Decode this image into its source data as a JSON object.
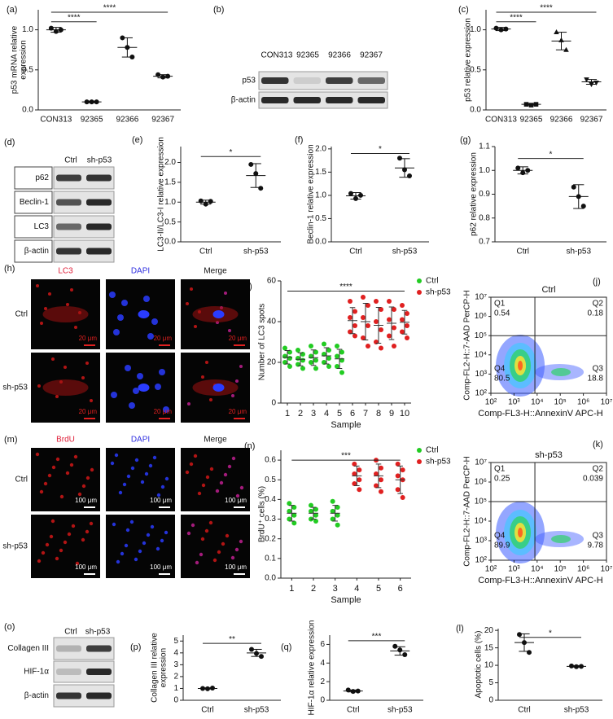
{
  "chart_data": [
    {
      "type": "dot",
      "panel": "(a)",
      "ylabel": [
        "p53 mRNA relative",
        "expression"
      ],
      "categories": [
        "CON313",
        "92365",
        "92366",
        "92367"
      ],
      "points": [
        [
          1.02,
          0.98,
          1.0
        ],
        [
          0.1,
          0.1,
          0.1
        ],
        [
          0.9,
          0.78,
          0.66
        ],
        [
          0.44,
          0.41,
          0.42
        ]
      ],
      "means": [
        1.0,
        0.1,
        0.78,
        0.42
      ],
      "sds": [
        0.03,
        0.01,
        0.12,
        0.02
      ],
      "ylim": [
        0,
        1.25
      ],
      "yticks": [
        {
          "value": 0,
          "label": "0.0"
        },
        0.5,
        {
          "value": 1,
          "label": "1.0"
        }
      ],
      "color": "#111111",
      "significance": [
        {
          "text": "****",
          "between": [
            "CON313",
            "92365"
          ],
          "y": 1.1
        },
        {
          "text": "****",
          "between": [
            "CON313",
            "92367"
          ],
          "y": 1.22
        }
      ]
    },
    {
      "type": "dot",
      "panel": "(c)",
      "ylabel": [
        "p53 relative expression"
      ],
      "categories": [
        "CON313",
        "92365",
        "92366",
        "92367"
      ],
      "points": [
        [
          1.02,
          1.0,
          1.01
        ],
        [
          0.07,
          0.06,
          0.07
        ],
        [
          0.97,
          0.87,
          0.75
        ],
        [
          0.38,
          0.32,
          0.34
        ]
      ],
      "means": [
        1.01,
        0.07,
        0.86,
        0.35
      ],
      "sds": [
        0.02,
        0.01,
        0.11,
        0.03
      ],
      "markers": [
        "circle",
        "square",
        "triangle",
        "triangle-down"
      ],
      "ylim": [
        0,
        1.25
      ],
      "yticks": [
        {
          "value": 0,
          "label": "0.0"
        },
        0.5,
        {
          "value": 1,
          "label": "1.0"
        }
      ],
      "color": "#111111",
      "significance": [
        {
          "text": "****",
          "between": [
            "CON313",
            "92365"
          ],
          "y": 1.1
        },
        {
          "text": "****",
          "between": [
            "CON313",
            "92367"
          ],
          "y": 1.22
        }
      ]
    },
    {
      "type": "dot",
      "panel": "(e)",
      "ylabel": [
        "LC3-II/LC3-I relative expression"
      ],
      "categories": [
        "Ctrl",
        "sh-p53"
      ],
      "points": [
        [
          1.03,
          0.95,
          1.02
        ],
        [
          1.95,
          1.72,
          1.35
        ]
      ],
      "means": [
        1.0,
        1.67
      ],
      "sds": [
        0.05,
        0.3
      ],
      "ylim": [
        0,
        2.4
      ],
      "yticks": [
        {
          "value": 0,
          "label": "0.0"
        },
        0.5,
        {
          "value": 1,
          "label": "1.0"
        },
        1.5,
        {
          "value": 2,
          "label": "2.0"
        }
      ],
      "color": "#111111",
      "significance": [
        {
          "text": "*",
          "between": [
            "Ctrl",
            "sh-p53"
          ],
          "y": 2.15
        }
      ]
    },
    {
      "type": "dot",
      "panel": "(f)",
      "ylabel": [
        "Beclin-1 relative expression"
      ],
      "categories": [
        "Ctrl",
        "sh-p53"
      ],
      "points": [
        [
          1.04,
          0.93,
          1.0
        ],
        [
          1.8,
          1.55,
          1.42
        ]
      ],
      "means": [
        0.99,
        1.59
      ],
      "sds": [
        0.07,
        0.2
      ],
      "ylim": [
        0,
        2.05
      ],
      "yticks": [
        {
          "value": 0,
          "label": "0.0"
        },
        0.5,
        {
          "value": 1,
          "label": "1.0"
        },
        1.5,
        {
          "value": 2,
          "label": "2.0"
        }
      ],
      "color": "#111111",
      "significance": [
        {
          "text": "*",
          "between": [
            "Ctrl",
            "sh-p53"
          ],
          "y": 1.9
        }
      ]
    },
    {
      "type": "dot",
      "panel": "(g)",
      "ylabel": [
        "p62 relative expression"
      ],
      "categories": [
        "Ctrl",
        "sh-p53"
      ],
      "points": [
        [
          1.01,
          0.99,
          1.0
        ],
        [
          0.93,
          0.89,
          0.85
        ]
      ],
      "means": [
        1.0,
        0.89
      ],
      "sds": [
        0.015,
        0.05
      ],
      "ylim": [
        0.7,
        1.1
      ],
      "yticks": [
        0.7,
        0.8,
        0.9,
        {
          "value": 1,
          "label": "1.0"
        },
        1.1
      ],
      "color": "#111111",
      "significance": [
        {
          "text": "*",
          "between": [
            "Ctrl",
            "sh-p53"
          ],
          "y": 1.05
        }
      ]
    },
    {
      "type": "sample-dot",
      "panel": "(i)",
      "ylabel": [
        "Number of LC3 spots"
      ],
      "xlabel": "Sample",
      "xlim": [
        0.5,
        10.5
      ],
      "xticks": [
        1,
        2,
        3,
        4,
        5,
        6,
        7,
        8,
        9,
        10
      ],
      "ylim": [
        0,
        60
      ],
      "yticks": [
        0,
        20,
        40,
        60
      ],
      "series": [
        {
          "name": "Ctrl",
          "color": "#22cc22",
          "x": [
            1,
            2,
            3,
            4,
            5
          ],
          "points": [
            [
              27,
              25,
              23,
              22,
              20,
              18
            ],
            [
              26,
              24,
              22,
              21,
              19,
              17
            ],
            [
              28,
              25,
              23,
              21,
              20,
              17
            ],
            [
              29,
              26,
              24,
              22,
              20,
              18
            ],
            [
              28,
              25,
              23,
              21,
              18,
              15
            ]
          ],
          "means": [
            22.5,
            21.5,
            22.3,
            23.2,
            21.7
          ],
          "sds": [
            3.3,
            3.2,
            3.8,
            4,
            4.7
          ]
        },
        {
          "name": "sh-p53",
          "color": "#e02020",
          "x": [
            6,
            7,
            8,
            9,
            10
          ],
          "points": [
            [
              50,
              45,
              42,
              38,
              35,
              33
            ],
            [
              52,
              48,
              42,
              38,
              32,
              28
            ],
            [
              50,
              46,
              40,
              36,
              30,
              27
            ],
            [
              50,
              46,
              41,
              37,
              33,
              28
            ],
            [
              48,
              44,
              41,
              38,
              35,
              32
            ]
          ],
          "means": [
            40.5,
            40,
            38.2,
            39.2,
            39.7
          ],
          "sds": [
            6.4,
            9,
            8.8,
            8,
            5.8
          ]
        }
      ],
      "significance": [
        {
          "text": "****",
          "between": [
            1,
            10
          ],
          "y": 55
        }
      ]
    },
    {
      "type": "sample-dot",
      "panel": "(n)",
      "ylabel": [
        "BrdU⁺ cells (%)"
      ],
      "xlabel": "Sample",
      "xlim": [
        0.5,
        6.5
      ],
      "xticks": [
        1,
        2,
        3,
        4,
        5,
        6
      ],
      "ylim": [
        0,
        0.65
      ],
      "yticks": [
        {
          "value": 0,
          "label": "0.0"
        },
        0.1,
        0.2,
        0.3,
        0.4,
        0.5,
        0.6
      ],
      "series": [
        {
          "name": "Ctrl",
          "color": "#22cc22",
          "x": [
            1,
            2,
            3
          ],
          "points": [
            [
              0.38,
              0.36,
              0.34,
              0.32,
              0.3,
              0.28
            ],
            [
              0.37,
              0.35,
              0.34,
              0.32,
              0.3,
              0.29
            ],
            [
              0.39,
              0.36,
              0.34,
              0.32,
              0.3,
              0.27
            ]
          ],
          "means": [
            0.33,
            0.33,
            0.33
          ],
          "sds": [
            0.04,
            0.03,
            0.04
          ]
        },
        {
          "name": "sh-p53",
          "color": "#e02020",
          "x": [
            4,
            5,
            6
          ],
          "points": [
            [
              0.58,
              0.55,
              0.53,
              0.5,
              0.48,
              0.45
            ],
            [
              0.6,
              0.56,
              0.53,
              0.5,
              0.47,
              0.44
            ],
            [
              0.58,
              0.55,
              0.52,
              0.5,
              0.45,
              0.41
            ]
          ],
          "means": [
            0.52,
            0.52,
            0.5
          ],
          "sds": [
            0.05,
            0.06,
            0.07
          ]
        }
      ],
      "significance": [
        {
          "text": "***",
          "between": [
            1,
            6
          ],
          "y": 0.6
        }
      ]
    },
    {
      "type": "dot",
      "panel": "(p)",
      "ylabel": [
        "Collagen III relative",
        "expression"
      ],
      "categories": [
        "Ctrl",
        "sh-p53"
      ],
      "points": [
        [
          1.0,
          0.97,
          1.03
        ],
        [
          4.3,
          3.95,
          3.7
        ]
      ],
      "means": [
        1.0,
        4.0
      ],
      "sds": [
        0.05,
        0.3
      ],
      "ylim": [
        0,
        5.5
      ],
      "yticks": [
        0,
        1,
        2,
        3,
        4,
        5
      ],
      "color": "#111111",
      "significance": [
        {
          "text": "**",
          "between": [
            "Ctrl",
            "sh-p53"
          ],
          "y": 4.8
        }
      ]
    },
    {
      "type": "dot",
      "panel": "(q)",
      "ylabel": [
        "HIF-1α relative expression"
      ],
      "categories": [
        "Ctrl",
        "sh-p53"
      ],
      "points": [
        [
          1.1,
          0.95,
          1.0
        ],
        [
          5.8,
          5.4,
          4.9
        ]
      ],
      "means": [
        1.0,
        5.3
      ],
      "sds": [
        0.1,
        0.45
      ],
      "ylim": [
        0,
        7
      ],
      "yticks": [
        0,
        2,
        4,
        6
      ],
      "color": "#111111",
      "significance": [
        {
          "text": "***",
          "between": [
            "Ctrl",
            "sh-p53"
          ],
          "y": 6.4
        }
      ]
    },
    {
      "type": "dot",
      "panel": "(l)",
      "ylabel": [
        "Apoptotic cells (%)"
      ],
      "categories": [
        "Ctrl",
        "sh-p53"
      ],
      "points": [
        [
          18.8,
          16.5,
          13.7
        ],
        [
          9.8,
          9.6,
          9.7
        ]
      ],
      "means": [
        16.5,
        9.7
      ],
      "sds": [
        2.5,
        0.2
      ],
      "ylim": [
        0,
        20.5
      ],
      "yticks": [
        0,
        5,
        10,
        15,
        20
      ],
      "color": "#111111",
      "significance": [
        {
          "text": "*",
          "between": [
            "Ctrl",
            "sh-p53"
          ],
          "y": 18
        }
      ]
    },
    {
      "type": "flow",
      "panel": "(j)",
      "title": "Ctrl",
      "xlabel": "Comp-FL3-H::AnnexinV APC-H",
      "ylabel": [
        "Comp-FL2-H::7-AAD PerCP-H"
      ],
      "log": true,
      "xlim": [
        100,
        10000000
      ],
      "ylim": [
        100,
        10000000
      ],
      "xticks": [
        {
          "value": 100,
          "label": "10²"
        },
        {
          "value": 1000,
          "label": "10³"
        },
        {
          "value": 10000,
          "label": "10⁴"
        },
        {
          "value": 100000,
          "label": "10⁵"
        },
        {
          "value": 1000000,
          "label": "10⁶"
        },
        {
          "value": 10000000,
          "label": "10⁷"
        }
      ],
      "yticks": [
        {
          "value": 100,
          "label": "10²"
        },
        {
          "value": 1000,
          "label": "10³"
        },
        {
          "value": 10000,
          "label": "10⁴"
        },
        {
          "value": 100000,
          "label": "10⁵"
        },
        {
          "value": 1000000,
          "label": "10⁶"
        },
        {
          "value": 10000000,
          "label": "10⁷"
        }
      ],
      "gate": {
        "x": 8000,
        "y": 100000
      },
      "quadrants": [
        {
          "name": "Q1",
          "value": 0.54
        },
        {
          "name": "Q2",
          "value": 0.18
        },
        {
          "name": "Q3",
          "value": 18.8
        },
        {
          "name": "Q4",
          "value": 80.5
        }
      ]
    },
    {
      "type": "flow",
      "panel": "(k)",
      "title": "sh-p53",
      "xlabel": "Comp-FL3-H::AnnexinV APC-H",
      "ylabel": [
        "Comp-FL2-H::7-AAD PerCP-H"
      ],
      "log": true,
      "xlim": [
        100,
        10000000
      ],
      "ylim": [
        100,
        10000000
      ],
      "xticks": [
        {
          "value": 100,
          "label": "10²"
        },
        {
          "value": 1000,
          "label": "10³"
        },
        {
          "value": 10000,
          "label": "10⁴"
        },
        {
          "value": 100000,
          "label": "10⁵"
        },
        {
          "value": 1000000,
          "label": "10⁶"
        },
        {
          "value": 10000000,
          "label": "10⁷"
        }
      ],
      "yticks": [
        {
          "value": 100,
          "label": "10²"
        },
        {
          "value": 1000,
          "label": "10³"
        },
        {
          "value": 10000,
          "label": "10⁴"
        },
        {
          "value": 100000,
          "label": "10⁵"
        },
        {
          "value": 1000000,
          "label": "10⁶"
        },
        {
          "value": 10000000,
          "label": "10⁷"
        }
      ],
      "gate": {
        "x": 8000,
        "y": 100000
      },
      "quadrants": [
        {
          "name": "Q1",
          "value": 0.25
        },
        {
          "name": "Q2",
          "value": 0.039
        },
        {
          "name": "Q3",
          "value": 9.78
        },
        {
          "name": "Q4",
          "value": 89.9
        }
      ]
    }
  ],
  "panels": {
    "blots": [
      {
        "panel": "(b)",
        "lanes": [
          "CON313",
          "92365",
          "92366",
          "92367"
        ],
        "proteins": [
          "p53",
          "β-actin"
        ]
      },
      {
        "panel": "(d)",
        "lanes": [
          "Ctrl",
          "sh-p53"
        ],
        "proteins": [
          "p62",
          "Beclin-1",
          "LC3",
          "β-actin"
        ]
      },
      {
        "panel": "(o)",
        "lanes": [
          "Ctrl",
          "sh-p53"
        ],
        "proteins": [
          "Collagen III",
          "HIF-1α",
          "β-actin"
        ]
      }
    ],
    "images": [
      {
        "panel": "(h)",
        "columns": [
          "LC3",
          "DAPI",
          "Merge"
        ],
        "rows": [
          "Ctrl",
          "sh-p53"
        ],
        "scale": "20 μm"
      },
      {
        "panel": "(m)",
        "columns": [
          "BrdU",
          "DAPI",
          "Merge"
        ],
        "rows": [
          "Ctrl",
          "sh-p53"
        ],
        "scale": "100 μm"
      }
    ]
  }
}
